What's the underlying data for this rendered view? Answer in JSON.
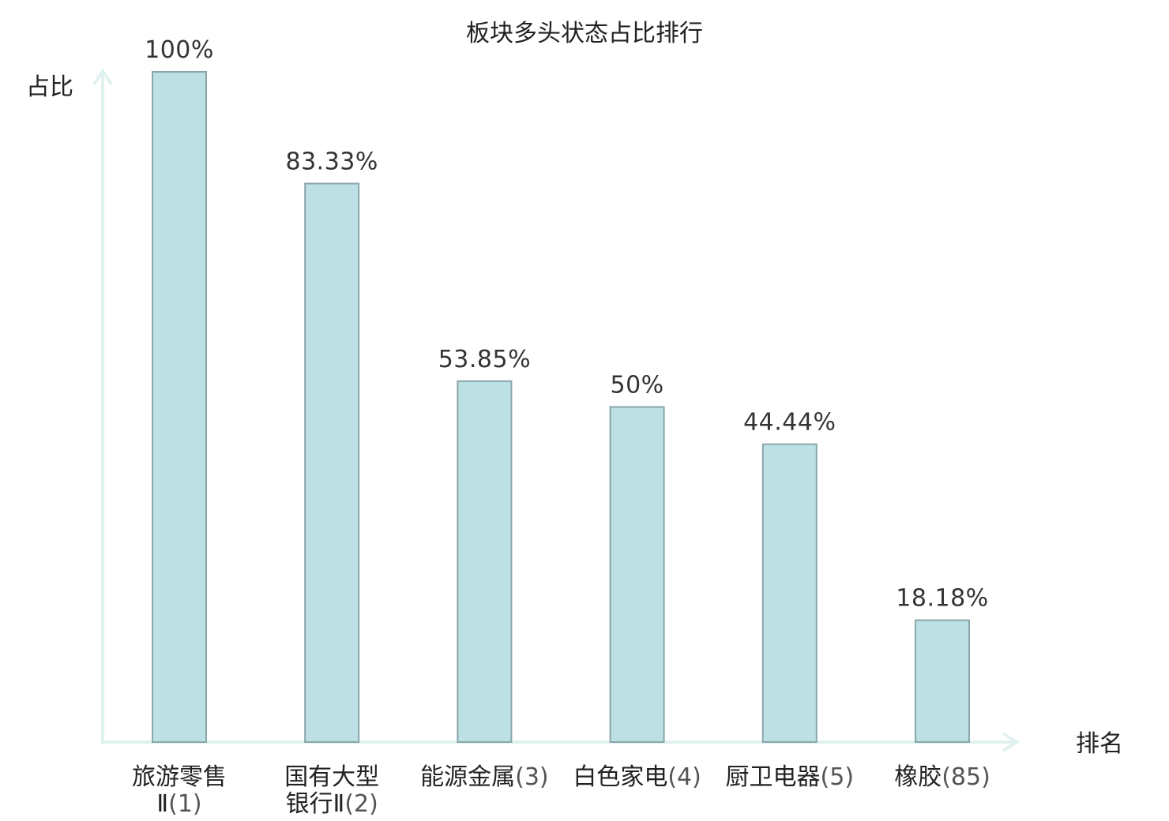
{
  "chart_data": {
    "type": "bar",
    "title": "板块多头状态占比排行",
    "ylabel": "占比",
    "xlabel": "排名",
    "ylim": [
      0,
      100
    ],
    "grid": false,
    "categories": [
      {
        "name_lines": [
          "旅游零售",
          "Ⅱ"
        ],
        "rank": "(1)",
        "value": 100,
        "value_label": "100%",
        "highlight": false
      },
      {
        "name_lines": [
          "国有大型",
          "银行Ⅱ"
        ],
        "rank": "(2)",
        "value": 83.33,
        "value_label": "83.33%",
        "highlight": false
      },
      {
        "name_lines": [
          "能源金属"
        ],
        "rank": "(3)",
        "value": 53.85,
        "value_label": "53.85%",
        "highlight": false
      },
      {
        "name_lines": [
          "白色家电"
        ],
        "rank": "(4)",
        "value": 50,
        "value_label": "50%",
        "highlight": false
      },
      {
        "name_lines": [
          "厨卫电器"
        ],
        "rank": "(5)",
        "value": 44.44,
        "value_label": "44.44%",
        "highlight": false
      },
      {
        "name_lines": [
          "橡胶"
        ],
        "rank": "(85)",
        "value": 18.18,
        "value_label": "18.18%",
        "highlight": true
      }
    ],
    "colors": {
      "bar_fill": "#bce0e3",
      "bar_stroke": "#8aa6aa",
      "axis": "#dff2ef",
      "highlight_text": "#e52a2a",
      "label_text": "#333333"
    }
  }
}
